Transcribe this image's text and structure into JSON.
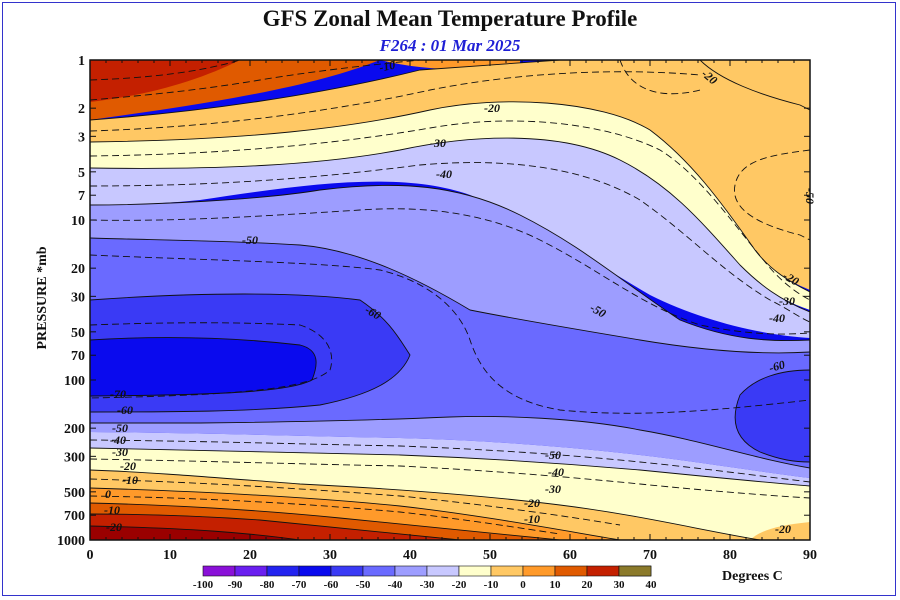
{
  "chart_data": {
    "type": "contour",
    "title": "GFS Zonal Mean Temperature Profile",
    "subtitle": "F264 : 01 Mar 2025",
    "ylabel": "PRESSURE *mb",
    "xlabel": "",
    "x_ticks": [
      "0",
      "10",
      "20",
      "30",
      "40",
      "50",
      "60",
      "70",
      "80",
      "90"
    ],
    "xlim": [
      0,
      90
    ],
    "y_ticks": [
      "1",
      "2",
      "3",
      "5",
      "7",
      "10",
      "20",
      "30",
      "50",
      "70",
      "100",
      "200",
      "300",
      "500",
      "700",
      "1000"
    ],
    "y_tick_values": [
      1,
      2,
      3,
      5,
      7,
      10,
      20,
      30,
      50,
      70,
      100,
      200,
      300,
      500,
      700,
      1000
    ],
    "ylim": [
      1,
      1000
    ],
    "y_scale": "log",
    "colorbar": {
      "levels": [
        "-100",
        "-90",
        "-80",
        "-70",
        "-60",
        "-50",
        "-40",
        "-30",
        "-20",
        "-10",
        "0",
        "10",
        "20",
        "30",
        "40"
      ],
      "colors": [
        "#8a10d8",
        "#6a1ff0",
        "#2323f0",
        "#0a0aee",
        "#3a3af5",
        "#6a6aff",
        "#9d9dff",
        "#c8c8ff",
        "#ffffcc",
        "#ffc864",
        "#ff9a2a",
        "#e05a00",
        "#c42000",
        "#9a0000",
        "#8b7a2a"
      ],
      "units": "Degrees C"
    },
    "contour_labels": [
      "-10",
      "-20",
      "-20",
      "-30",
      "-40",
      "-50",
      "-60",
      "-50",
      "-60",
      "-70",
      "-60",
      "-50",
      "-40",
      "-30",
      "-20",
      "-10",
      "0",
      "-10",
      "-20",
      "-50",
      "-40",
      "-30",
      "-20",
      "-10",
      "-20",
      "-30",
      "-40",
      "-20",
      "-50"
    ],
    "bands": [
      {
        "level_lower": -20,
        "level_upper": -10,
        "color": "#ff9a2a"
      },
      {
        "level_lower": -30,
        "level_upper": -20,
        "color": "#ffc864"
      },
      {
        "level_lower": -40,
        "level_upper": -30,
        "color": "#ffffcc"
      },
      {
        "level_lower": -50,
        "level_upper": -40,
        "color": "#c8c8ff"
      },
      {
        "level_lower": -60,
        "level_upper": -50,
        "color": "#9d9dff"
      },
      {
        "level_lower": -70,
        "level_upper": -60,
        "color": "#6a6aff"
      },
      {
        "level_lower": -80,
        "level_upper": -70,
        "color": "#3a3af5"
      },
      {
        "level_lower": -90,
        "level_upper": -80,
        "color": "#0a0aee"
      }
    ]
  }
}
